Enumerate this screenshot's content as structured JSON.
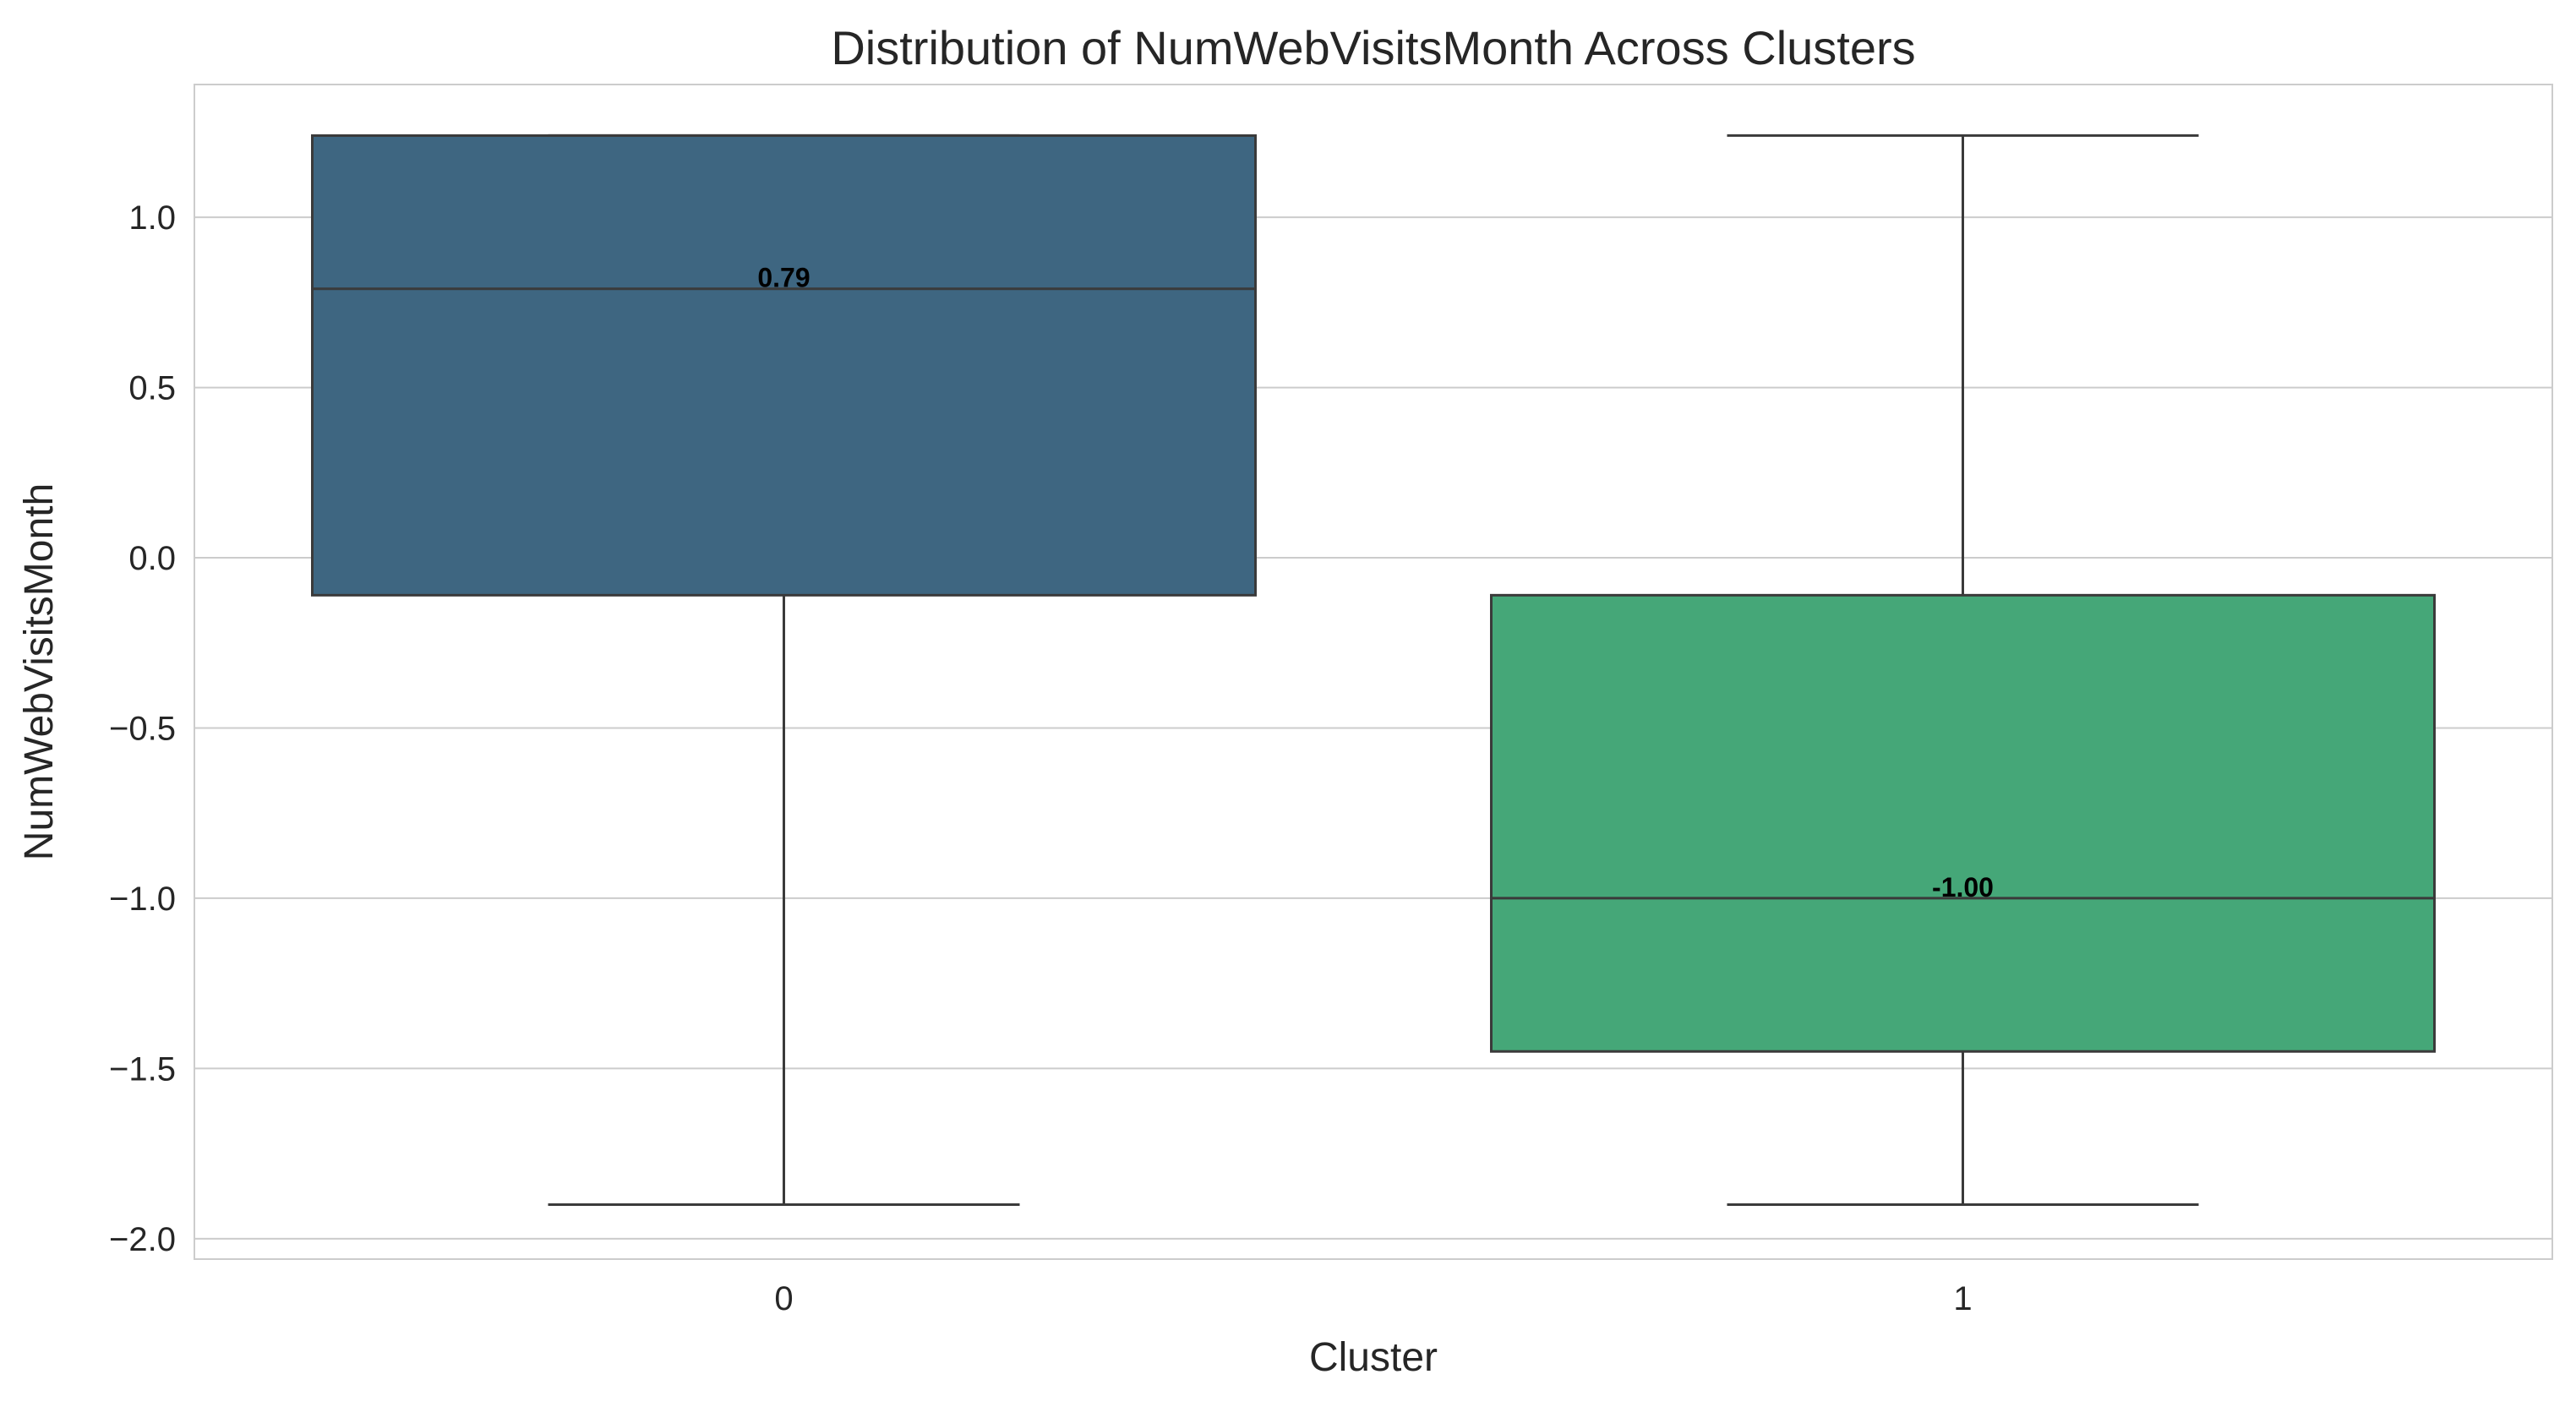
{
  "chart_data": {
    "type": "box",
    "title": "Distribution of NumWebVisitsMonth Across Clusters",
    "xlabel": "Cluster",
    "ylabel": "NumWebVisitsMonth",
    "categories": [
      "0",
      "1"
    ],
    "ylim": [
      -2.06,
      1.39
    ],
    "yticks": [
      1.0,
      0.5,
      0.0,
      -0.5,
      -1.0,
      -1.5,
      -2.0
    ],
    "ytick_labels": [
      "1.0",
      "0.5",
      "0.0",
      "−0.5",
      "−1.0",
      "−1.5",
      "−2.0"
    ],
    "grid": true,
    "legend": "none",
    "boxes": [
      {
        "category": "0",
        "whisker_low": -1.9,
        "q1": -0.11,
        "median": 0.79,
        "q3": 1.24,
        "whisker_high": 1.24,
        "median_label": "0.79",
        "color": "#3e6681"
      },
      {
        "category": "1",
        "whisker_low": -1.9,
        "q1": -1.45,
        "median": -1.0,
        "q3": -0.11,
        "whisker_high": 1.24,
        "median_label": "-1.00",
        "color": "#45a778"
      }
    ]
  },
  "colors": {
    "grid": "#cccccc",
    "box_edge": "#3a3a3a",
    "text": "#262626",
    "background": "#ffffff"
  }
}
